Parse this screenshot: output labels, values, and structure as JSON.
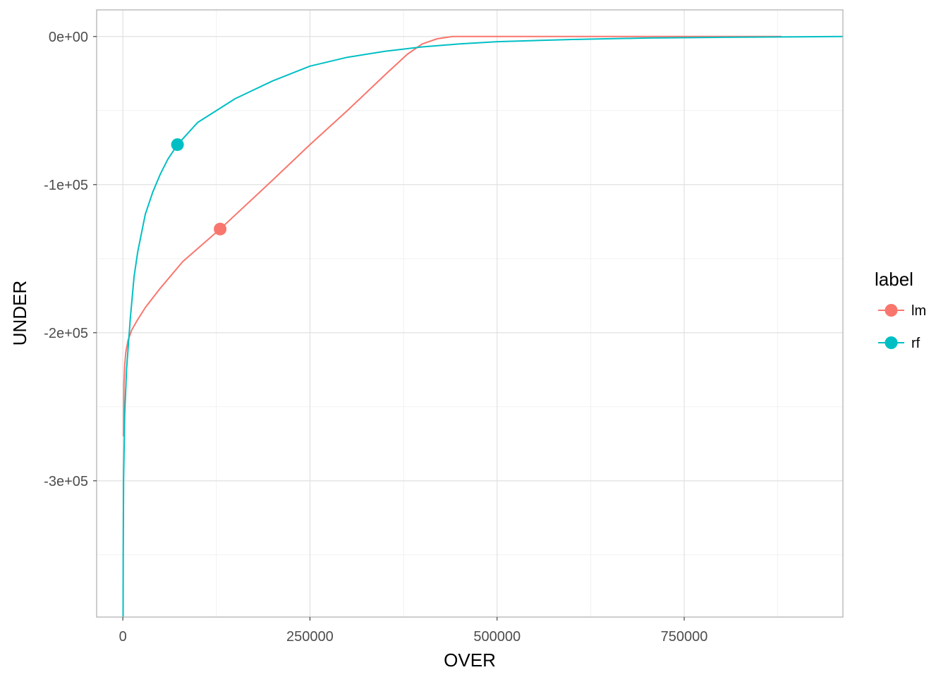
{
  "chart_data": {
    "type": "line",
    "xlabel": "OVER",
    "ylabel": "UNDER",
    "xlim": [
      -35000,
      962000
    ],
    "ylim": [
      -392000,
      18000
    ],
    "x_ticks": [
      {
        "value": 0,
        "label": "0"
      },
      {
        "value": 250000,
        "label": "250000"
      },
      {
        "value": 500000,
        "label": "500000"
      },
      {
        "value": 750000,
        "label": "750000"
      }
    ],
    "y_ticks": [
      {
        "value": 0,
        "label": "0e+00"
      },
      {
        "value": -100000,
        "label": "-1e+05"
      },
      {
        "value": -200000,
        "label": "-2e+05"
      },
      {
        "value": -300000,
        "label": "-3e+05"
      }
    ],
    "grid": true,
    "legend": {
      "title": "label",
      "position": "right"
    },
    "series": [
      {
        "name": "lm",
        "color": "#F8766D",
        "points": [
          [
            1000,
            -270000
          ],
          [
            1500,
            -235000
          ],
          [
            2500,
            -222000
          ],
          [
            4000,
            -213000
          ],
          [
            7000,
            -205000
          ],
          [
            12000,
            -198000
          ],
          [
            20000,
            -191000
          ],
          [
            30000,
            -183000
          ],
          [
            50000,
            -170000
          ],
          [
            80000,
            -152000
          ],
          [
            130000,
            -130000
          ],
          [
            200000,
            -97000
          ],
          [
            250000,
            -73000
          ],
          [
            300000,
            -50000
          ],
          [
            350000,
            -26000
          ],
          [
            380000,
            -12000
          ],
          [
            400000,
            -5000
          ],
          [
            420000,
            -1500
          ],
          [
            440000,
            0
          ],
          [
            600000,
            0
          ],
          [
            750000,
            0
          ],
          [
            880000,
            0
          ]
        ],
        "marker": [
          130000,
          -130000
        ]
      },
      {
        "name": "rf",
        "color": "#00BFC4",
        "points": [
          [
            300,
            -392000
          ],
          [
            500,
            -350000
          ],
          [
            1000,
            -300000
          ],
          [
            2500,
            -255000
          ],
          [
            5000,
            -225000
          ],
          [
            10000,
            -190000
          ],
          [
            15000,
            -162000
          ],
          [
            20000,
            -145000
          ],
          [
            30000,
            -120000
          ],
          [
            40000,
            -105000
          ],
          [
            50000,
            -93000
          ],
          [
            60000,
            -83000
          ],
          [
            73000,
            -73000
          ],
          [
            100000,
            -58000
          ],
          [
            150000,
            -42000
          ],
          [
            200000,
            -30000
          ],
          [
            250000,
            -20000
          ],
          [
            300000,
            -14000
          ],
          [
            350000,
            -10000
          ],
          [
            400000,
            -7000
          ],
          [
            450000,
            -5000
          ],
          [
            500000,
            -3500
          ],
          [
            600000,
            -2000
          ],
          [
            700000,
            -1000
          ],
          [
            800000,
            -500
          ],
          [
            900000,
            -200
          ],
          [
            962000,
            0
          ]
        ],
        "marker": [
          73000,
          -73000
        ]
      }
    ]
  }
}
